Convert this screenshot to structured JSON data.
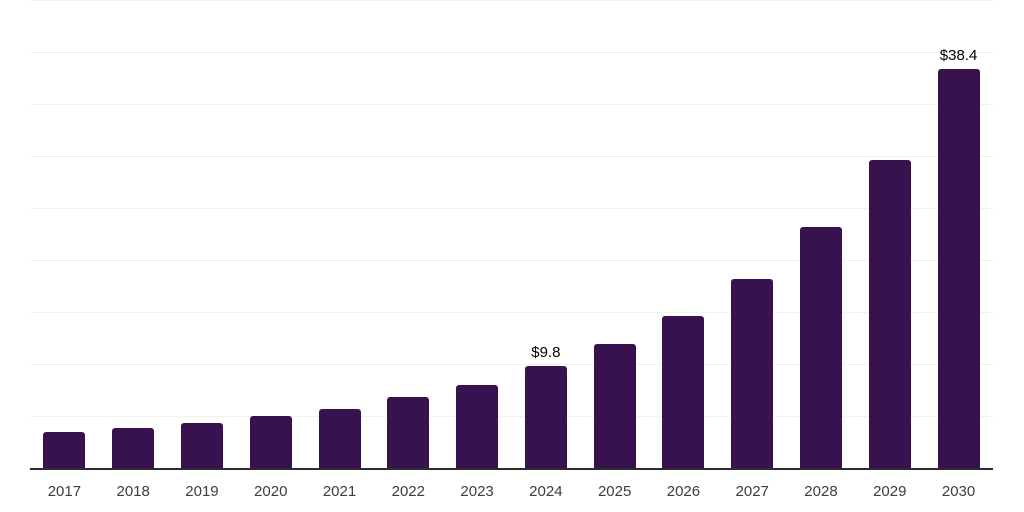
{
  "chart_data": {
    "type": "bar",
    "title": "",
    "xlabel": "",
    "ylabel": "",
    "categories": [
      "2017",
      "2018",
      "2019",
      "2020",
      "2021",
      "2022",
      "2023",
      "2024",
      "2025",
      "2026",
      "2027",
      "2028",
      "2029",
      "2030"
    ],
    "values": [
      3.5,
      3.8,
      4.3,
      5.0,
      5.7,
      6.8,
      8.0,
      9.8,
      11.9,
      14.6,
      18.2,
      23.2,
      29.6,
      38.4
    ],
    "value_labels": {
      "2024": "$9.8",
      "2030": "$38.4"
    },
    "ylim": [
      0,
      45
    ],
    "gridline_step": 5,
    "grid": true,
    "legend": false,
    "colors": {
      "bar": "#38124E",
      "axis": "#2d2d2d",
      "gridline": "#f1f1f1",
      "tick_label": "#3d3d3d",
      "value_label": "#000000"
    }
  }
}
